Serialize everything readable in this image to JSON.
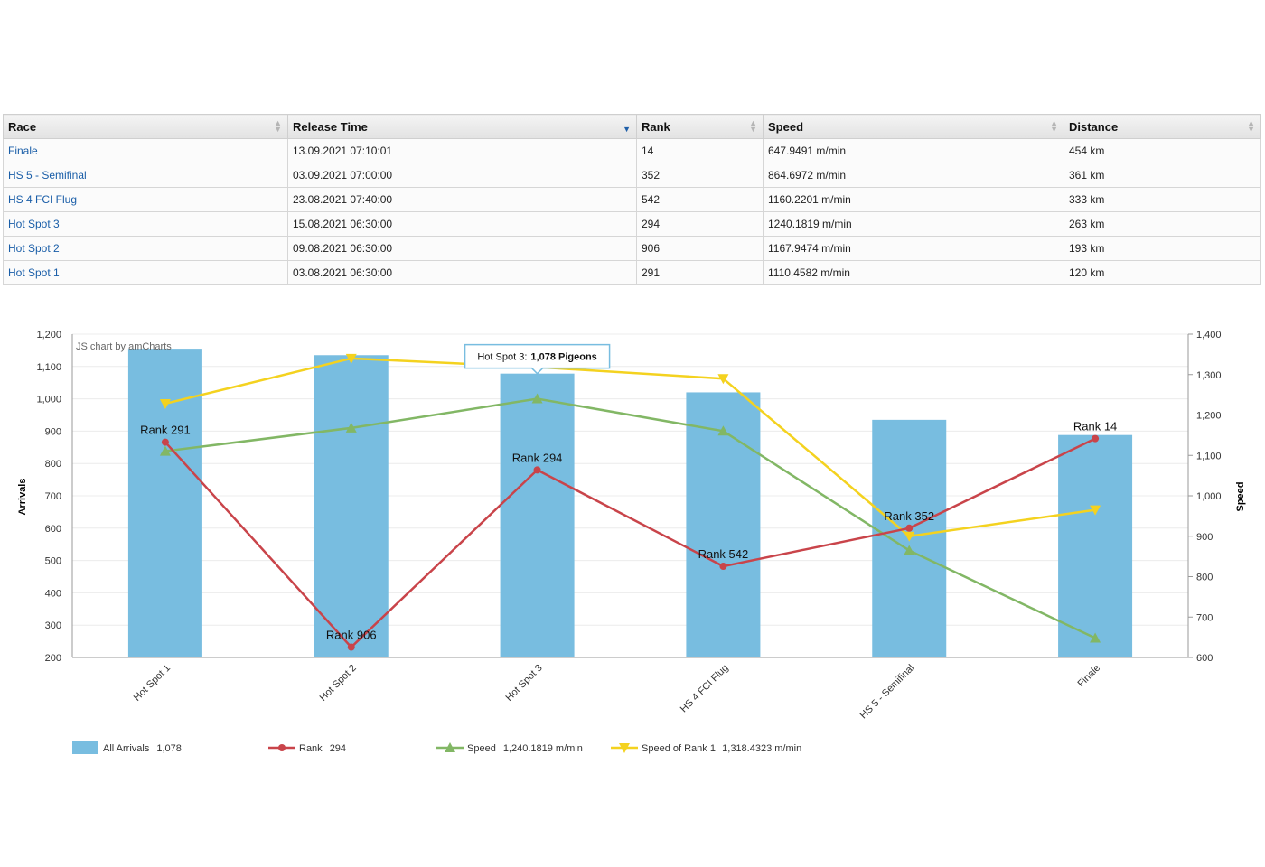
{
  "table": {
    "headers": [
      "Race",
      "Release Time",
      "Rank",
      "Speed",
      "Distance"
    ],
    "rows": [
      [
        "Finale",
        "13.09.2021 07:10:01",
        "14",
        "647.9491 m/min",
        "454 km"
      ],
      [
        "HS 5 - Semifinal",
        "03.09.2021 07:00:00",
        "352",
        "864.6972 m/min",
        "361 km"
      ],
      [
        "HS 4 FCI Flug",
        "23.08.2021 07:40:00",
        "542",
        "1160.2201 m/min",
        "333 km"
      ],
      [
        "Hot Spot 3",
        "15.08.2021 06:30:00",
        "294",
        "1240.1819 m/min",
        "263 km"
      ],
      [
        "Hot Spot 2",
        "09.08.2021 06:30:00",
        "906",
        "1167.9474 m/min",
        "193 km"
      ],
      [
        "Hot Spot 1",
        "03.08.2021 06:30:00",
        "291",
        "1110.4582 m/min",
        "120 km"
      ]
    ],
    "sorted_column": "Release Time",
    "sort_direction": "descending"
  },
  "chart_data": {
    "type": "bar",
    "credit": "JS chart by amCharts",
    "categories": [
      "Hot Spot 1",
      "Hot Spot 2",
      "Hot Spot 3",
      "HS 4 FCI Flug",
      "HS 5 - Semifinal",
      "Finale"
    ],
    "ylabel": "Arrivals",
    "y2label": "Speed",
    "ylim": [
      200,
      1200
    ],
    "yticks": [
      "200",
      "300",
      "400",
      "500",
      "600",
      "700",
      "800",
      "900",
      "1,000",
      "1,100",
      "1,200"
    ],
    "y2lim": [
      600,
      1400
    ],
    "y2ticks": [
      "600",
      "700",
      "800",
      "900",
      "1,000",
      "1,100",
      "1,200",
      "1,300",
      "1,400"
    ],
    "grid": true,
    "series": [
      {
        "name": "All Arrivals",
        "kind": "bar",
        "axis": "left",
        "color": "#78bde0",
        "values": [
          1155,
          1135,
          1078,
          1020,
          935,
          888
        ]
      },
      {
        "name": "Rank",
        "kind": "line",
        "axis": "left",
        "color": "#c9444a",
        "marker": "circle",
        "values": [
          866,
          232,
          780,
          482,
          600,
          877
        ],
        "labels": [
          "Rank 291",
          "Rank 906",
          "Rank 294",
          "Rank 542",
          "Rank 352",
          "Rank 14"
        ]
      },
      {
        "name": "Speed",
        "kind": "line",
        "axis": "right",
        "color": "#82b765",
        "marker": "triangle-up",
        "values": [
          1110.4582,
          1167.9474,
          1240.1819,
          1160.2201,
          864.6972,
          647.9491
        ]
      },
      {
        "name": "Speed of Rank 1",
        "kind": "line",
        "axis": "right",
        "color": "#f4d21f",
        "marker": "triangle-down",
        "values": [
          1228,
          1340,
          1318.4323,
          1290,
          900,
          965
        ]
      }
    ],
    "tooltip": {
      "category": "Hot Spot 3",
      "prefix": "Hot Spot 3:",
      "value": "1,078 Pigeons"
    },
    "legend": {
      "placement": "bottom",
      "items": [
        {
          "label": "All Arrivals",
          "value": "1,078"
        },
        {
          "label": "Rank",
          "value": "294"
        },
        {
          "label": "Speed",
          "value": "1,240.1819 m/min"
        },
        {
          "label": "Speed of Rank 1",
          "value": "1,318.4323 m/min"
        }
      ]
    }
  }
}
